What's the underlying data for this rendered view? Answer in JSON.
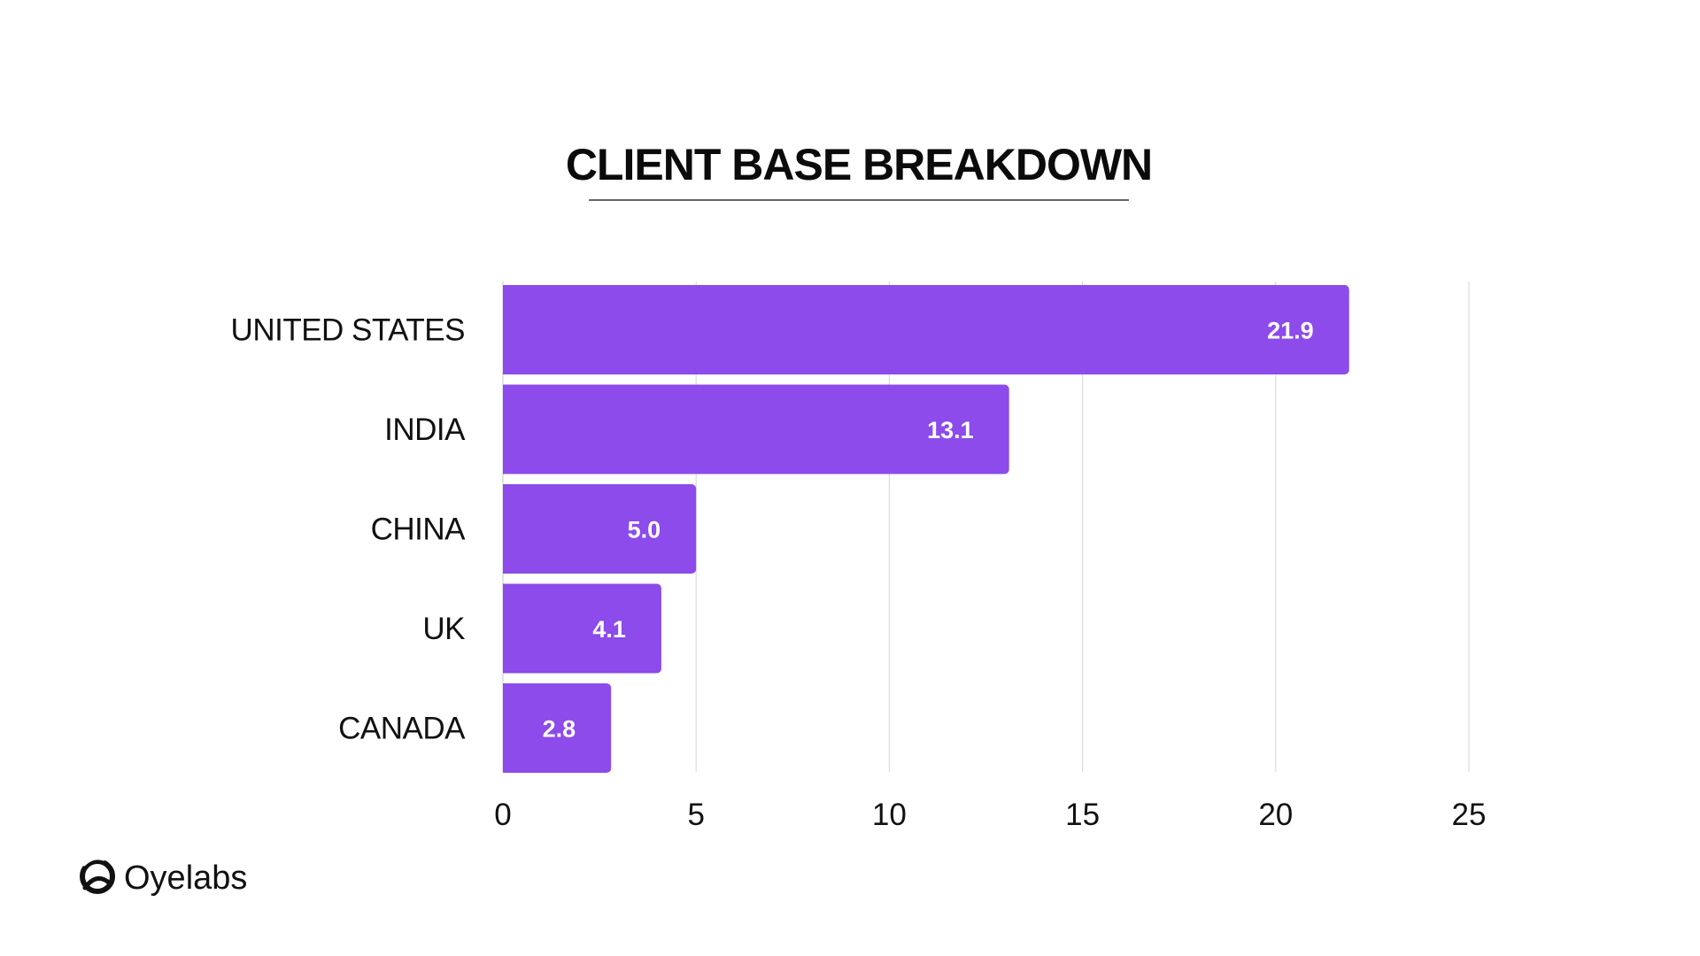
{
  "chart_data": {
    "type": "bar",
    "orientation": "horizontal",
    "title": "CLIENT BASE BREAKDOWN",
    "categories": [
      "UNITED STATES",
      "INDIA",
      "CHINA",
      "UK",
      "CANADA"
    ],
    "values": [
      21.9,
      13.1,
      5.0,
      4.1,
      2.8
    ],
    "value_labels": [
      "21.9",
      "13.1",
      "5.0",
      "4.1",
      "2.8"
    ],
    "xlim": [
      0,
      25
    ],
    "xticks": [
      0,
      5,
      10,
      15,
      20,
      25
    ],
    "grid": "vertical",
    "xlabel": "",
    "ylabel": ""
  },
  "brand": {
    "name": "Oyelabs",
    "icon": "oyelabs-logo-icon"
  },
  "colors": {
    "bar": "#8c4bea",
    "grid": "#dcdcdc",
    "text": "#111111",
    "title_rule": "#333333"
  }
}
